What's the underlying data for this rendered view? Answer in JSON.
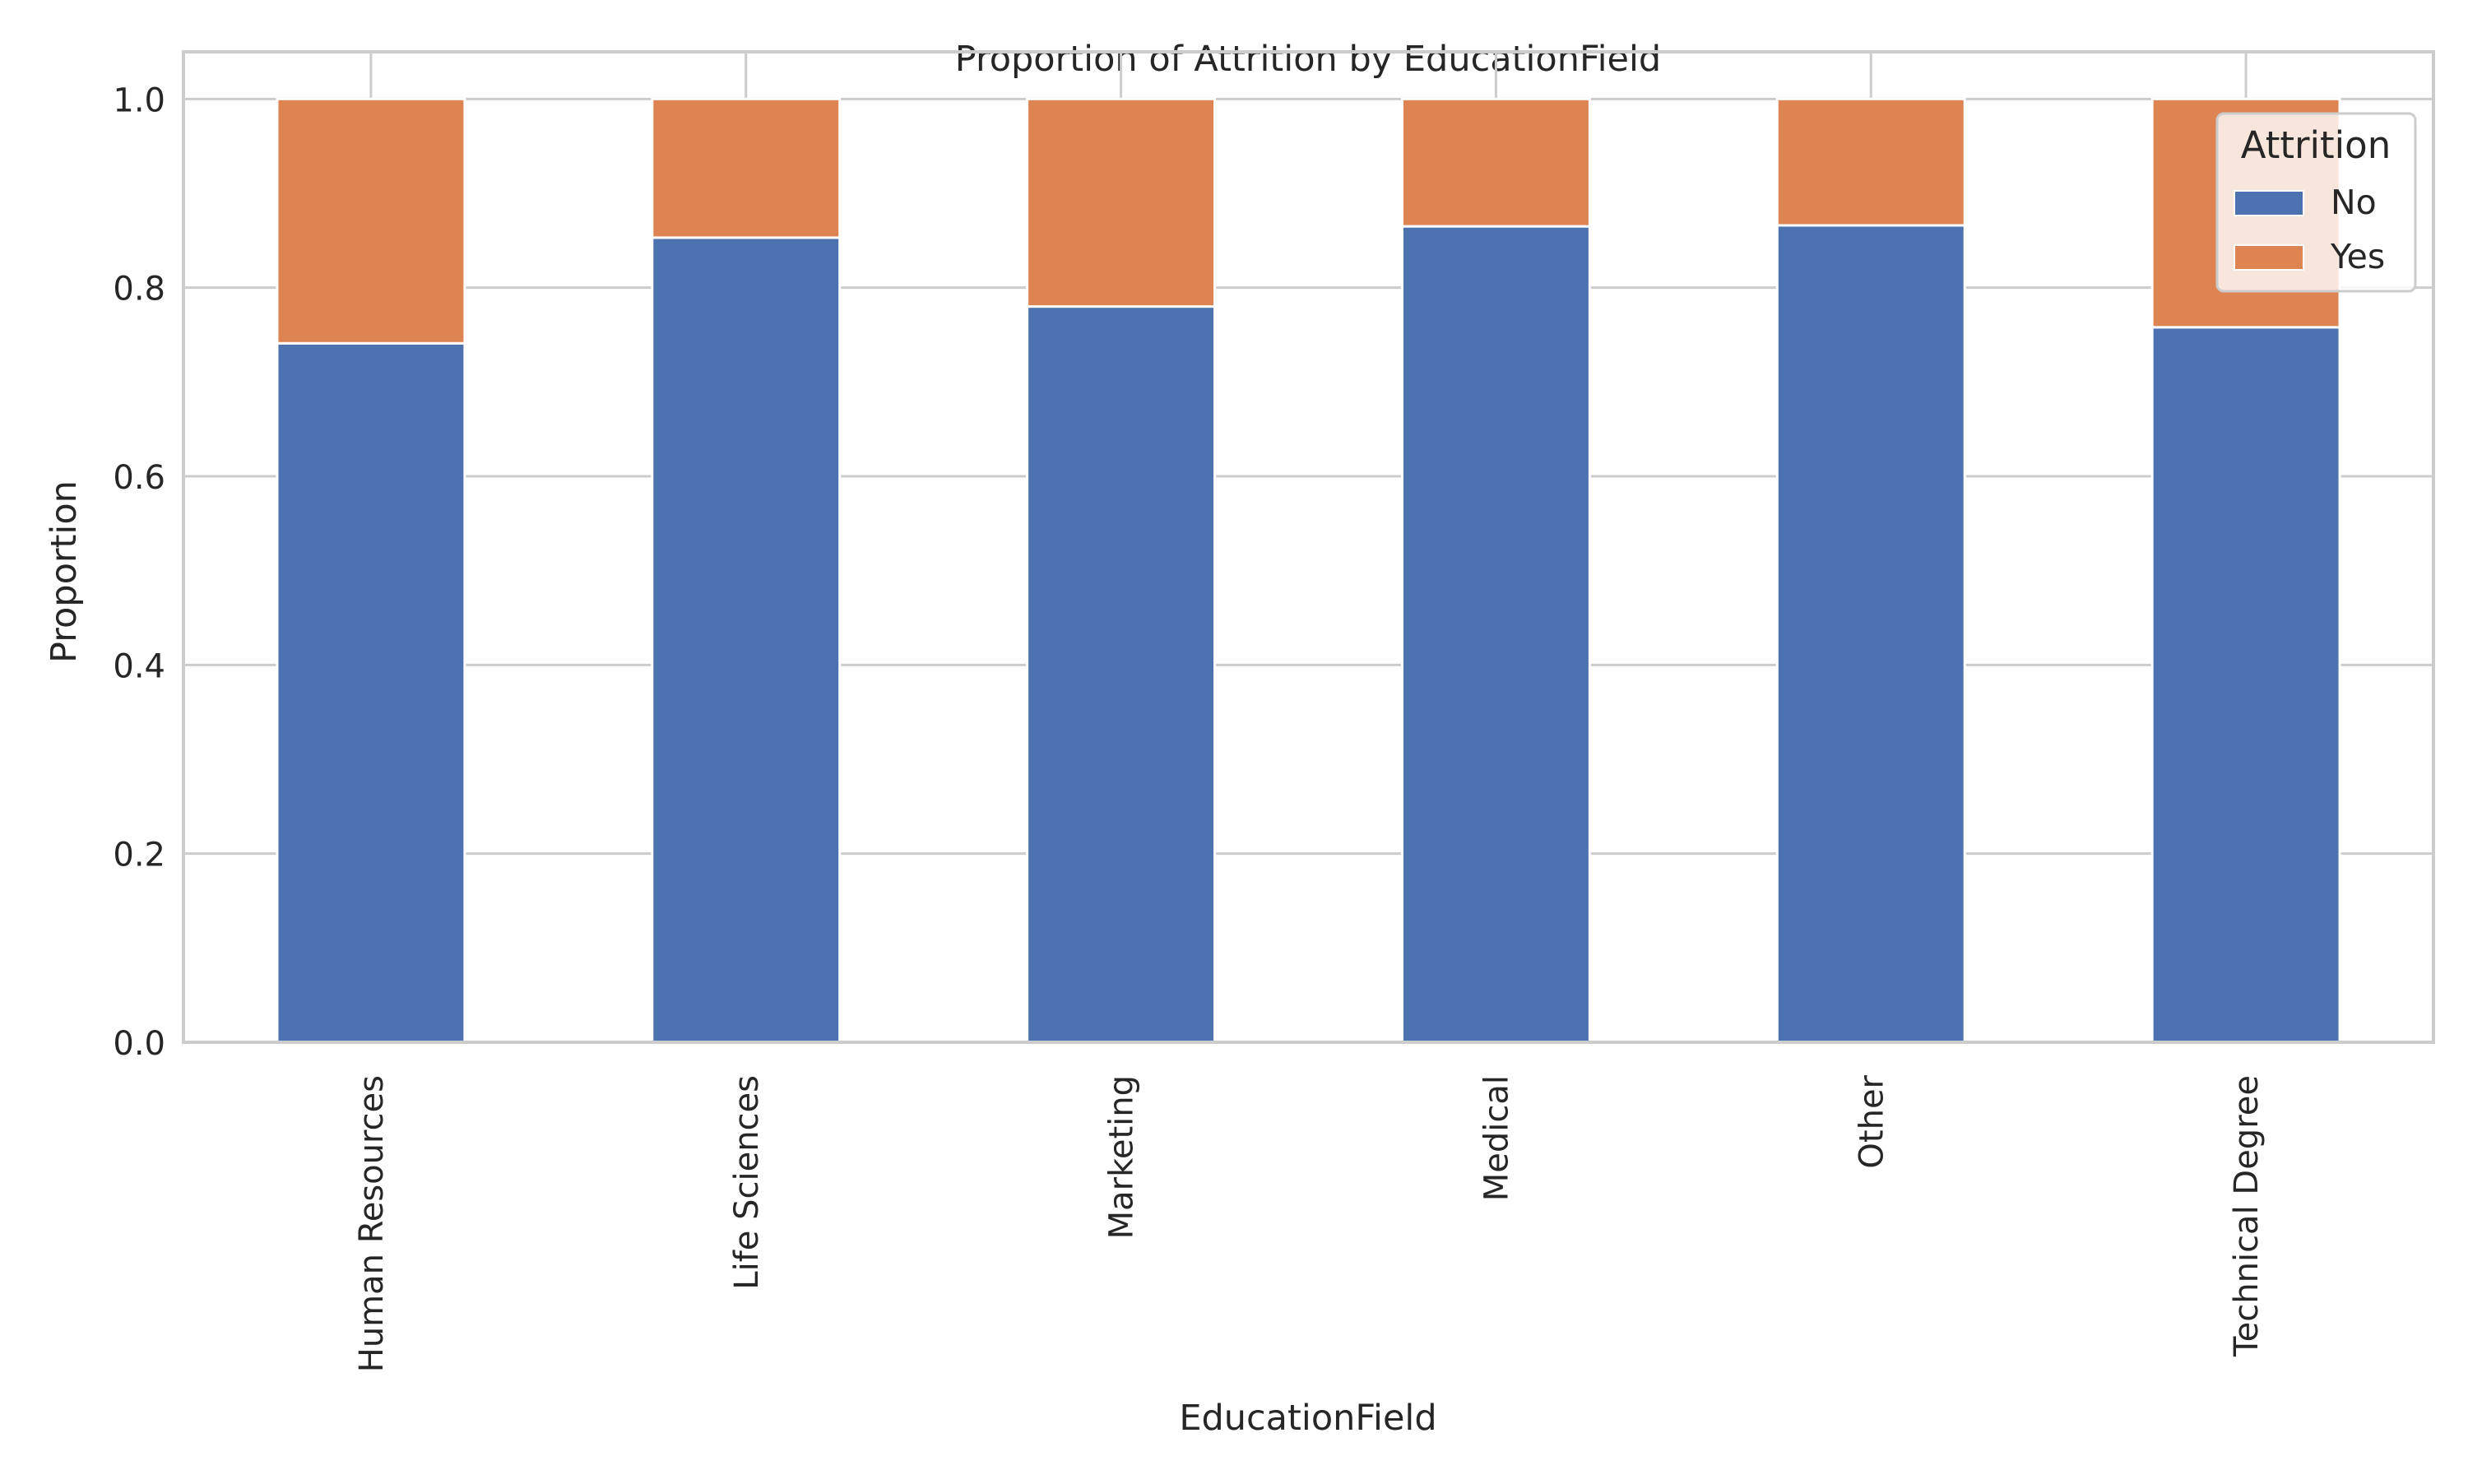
{
  "chart_data": {
    "type": "bar",
    "stacked": true,
    "title": "Proportion of Attrition by EducationField",
    "xlabel": "EducationField",
    "ylabel": "Proportion",
    "ylim": [
      0,
      1.05
    ],
    "yticks": [
      0.0,
      0.2,
      0.4,
      0.6,
      0.8,
      1.0
    ],
    "ytick_labels": [
      "0.0",
      "0.2",
      "0.4",
      "0.6",
      "0.8",
      "1.0"
    ],
    "categories": [
      "Human Resources",
      "Life Sciences",
      "Marketing",
      "Medical",
      "Other",
      "Technical Degree"
    ],
    "series": [
      {
        "name": "No",
        "color": "#4c72b0",
        "values": [
          0.741,
          0.853,
          0.78,
          0.865,
          0.866,
          0.758
        ]
      },
      {
        "name": "Yes",
        "color": "#dd8452",
        "values": [
          0.259,
          0.147,
          0.22,
          0.135,
          0.134,
          0.242
        ]
      }
    ],
    "legend": {
      "title": "Attrition",
      "placement": "top-right"
    },
    "grid": true
  }
}
